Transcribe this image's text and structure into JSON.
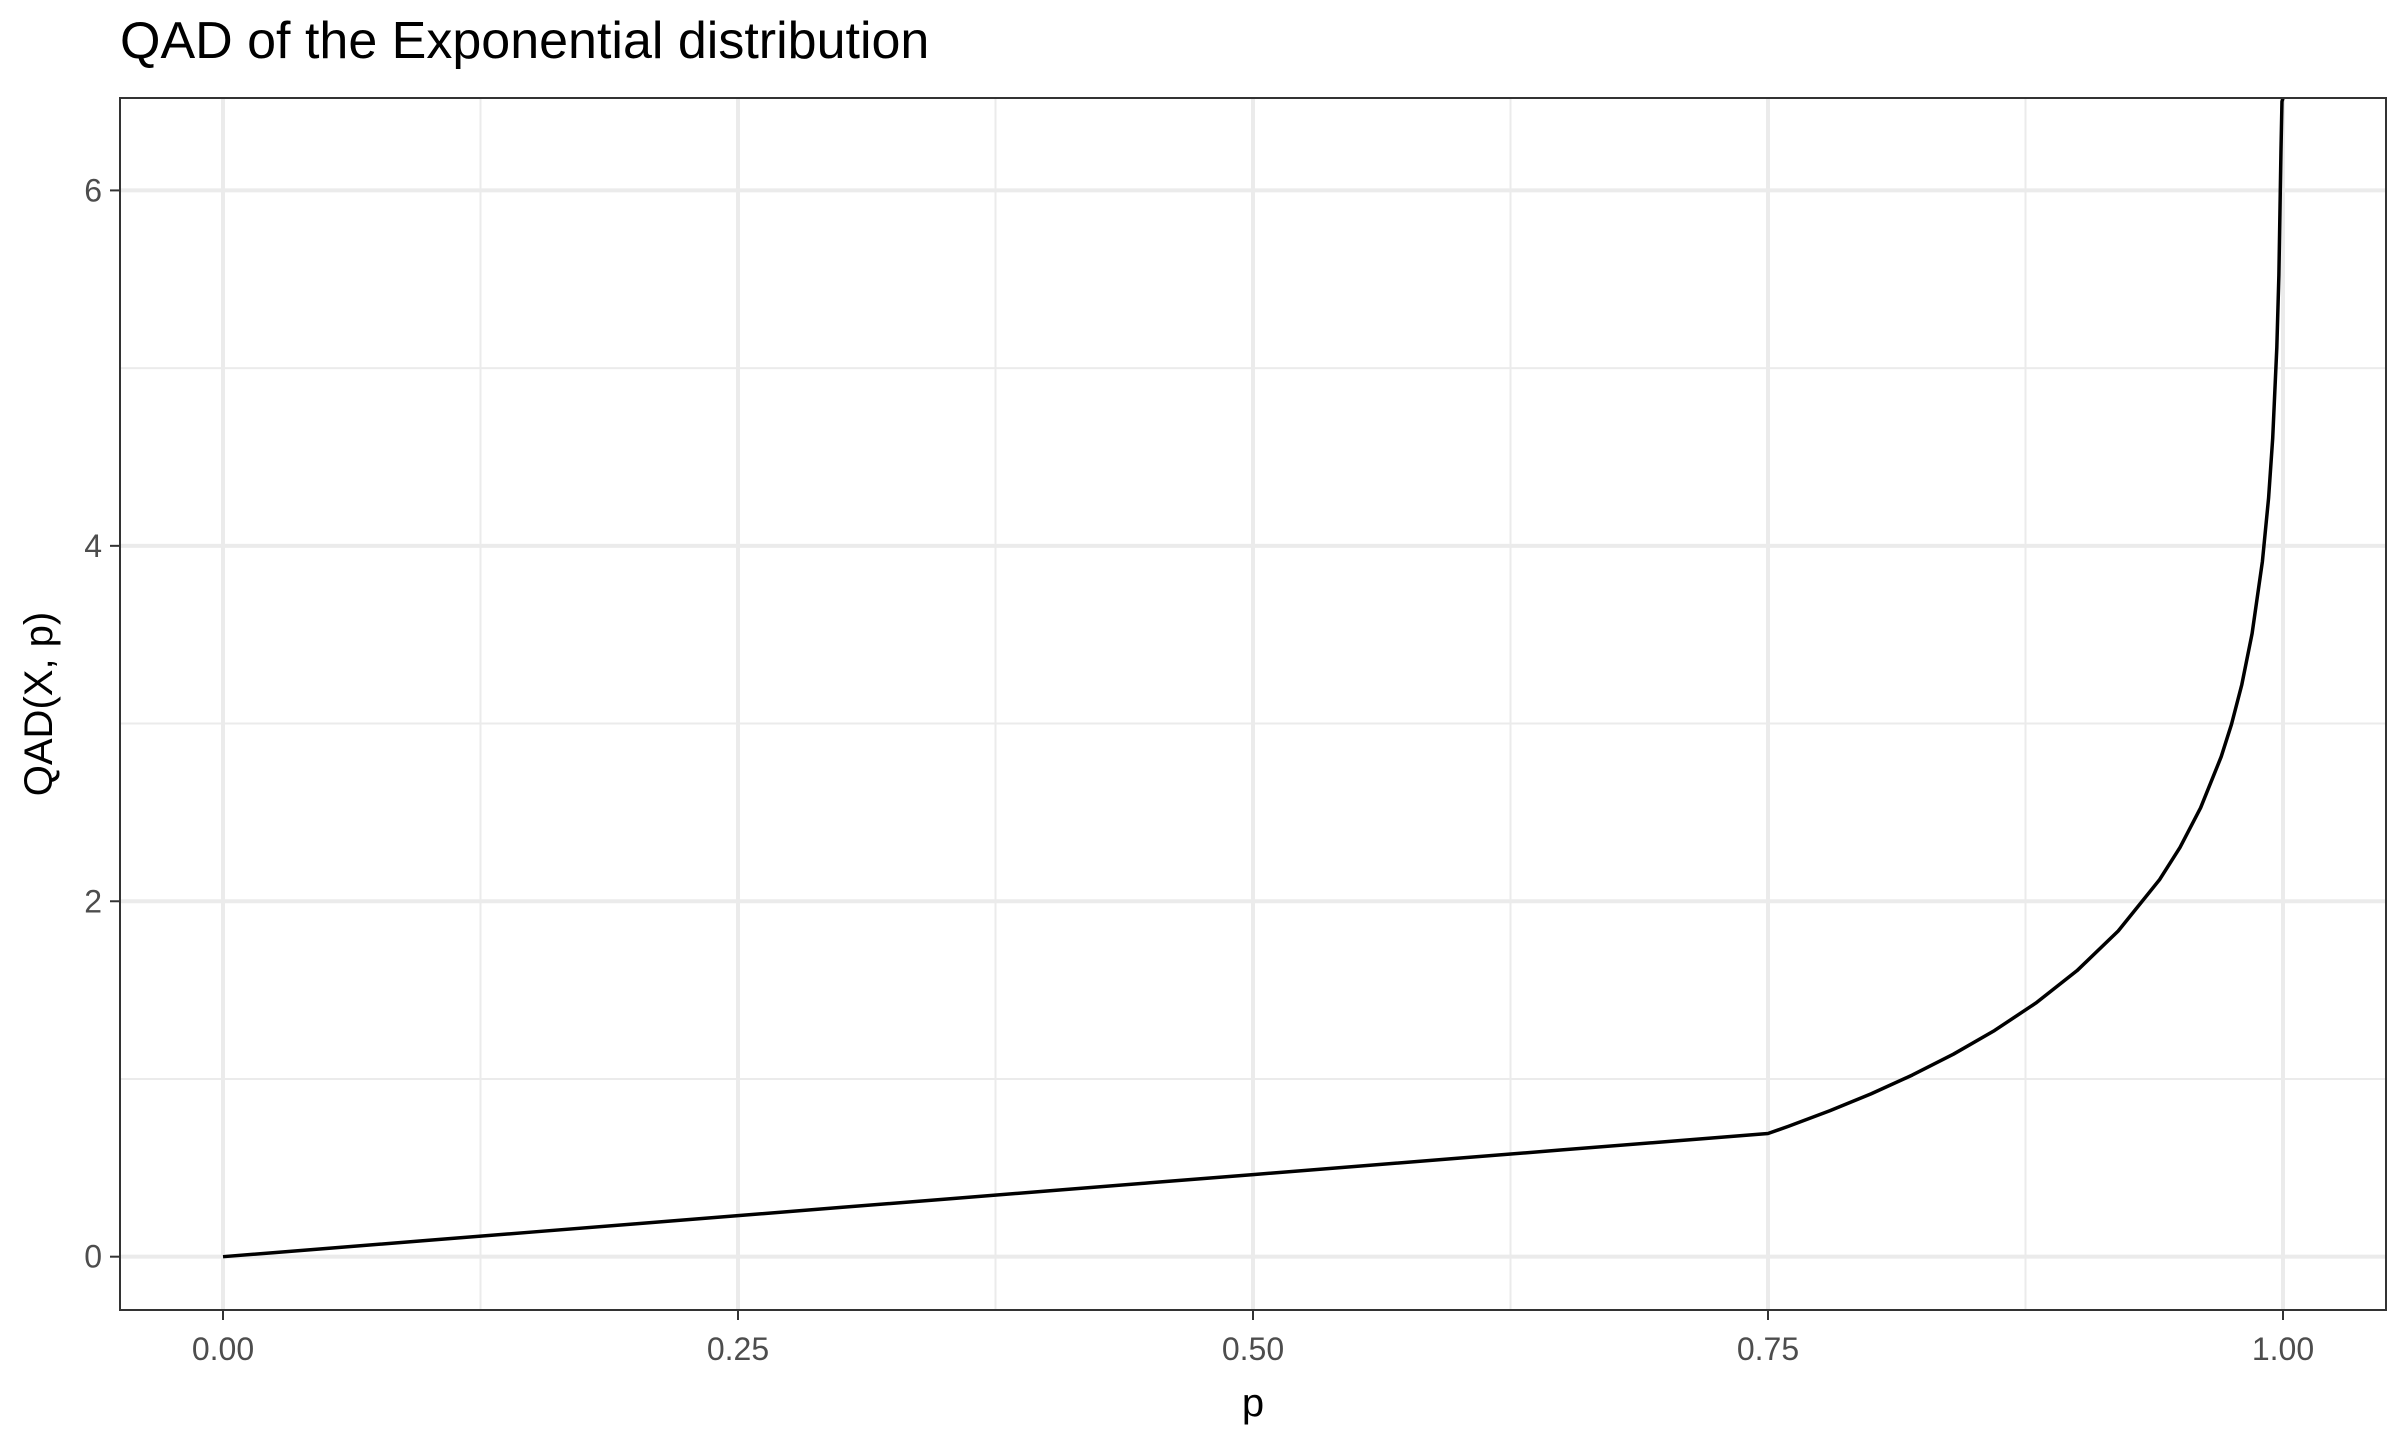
{
  "chart_data": {
    "type": "line",
    "title": "QAD of the Exponential distribution",
    "xlabel": "p",
    "ylabel": "QAD(X, p)",
    "xlim": [
      -0.05,
      1.05
    ],
    "ylim": [
      -0.3,
      6.52
    ],
    "x_ticks": [
      0,
      0.25,
      0.5,
      0.75,
      1
    ],
    "x_tick_labels": [
      "0.00",
      "0.25",
      "0.50",
      "0.75",
      "1.00"
    ],
    "y_ticks": [
      0,
      2,
      4,
      6
    ],
    "y_tick_labels": [
      "0",
      "2",
      "4",
      "6"
    ],
    "x_minor_ticks": [
      0.125,
      0.375,
      0.625,
      0.875
    ],
    "y_minor_ticks": [
      1,
      3,
      5
    ],
    "grid": true,
    "legend": "none",
    "series": [
      {
        "color": "#000000",
        "x": [
          0,
          0.05,
          0.1,
          0.15,
          0.2,
          0.25,
          0.3,
          0.35,
          0.4,
          0.45,
          0.5,
          0.55,
          0.6,
          0.65,
          0.7,
          0.75,
          0.76,
          0.78,
          0.8,
          0.82,
          0.84,
          0.86,
          0.88,
          0.9,
          0.92,
          0.94,
          0.95,
          0.96,
          0.97,
          0.975,
          0.98,
          0.985,
          0.99,
          0.993,
          0.995,
          0.997,
          0.998,
          0.999,
          0.9995,
          1.0
        ],
        "y": [
          0,
          0.0462,
          0.0924,
          0.1386,
          0.1848,
          0.231,
          0.2773,
          0.3235,
          0.3697,
          0.4159,
          0.4621,
          0.5083,
          0.5545,
          0.6007,
          0.6469,
          0.6931,
          0.734,
          0.821,
          0.9163,
          1.0217,
          1.1394,
          1.273,
          1.4271,
          1.6094,
          1.8326,
          2.1203,
          2.3026,
          2.5257,
          2.8134,
          2.9957,
          3.2189,
          3.5066,
          3.912,
          4.2687,
          4.6052,
          5.116,
          5.5215,
          6.2146,
          6.5,
          6.52
        ]
      }
    ]
  }
}
